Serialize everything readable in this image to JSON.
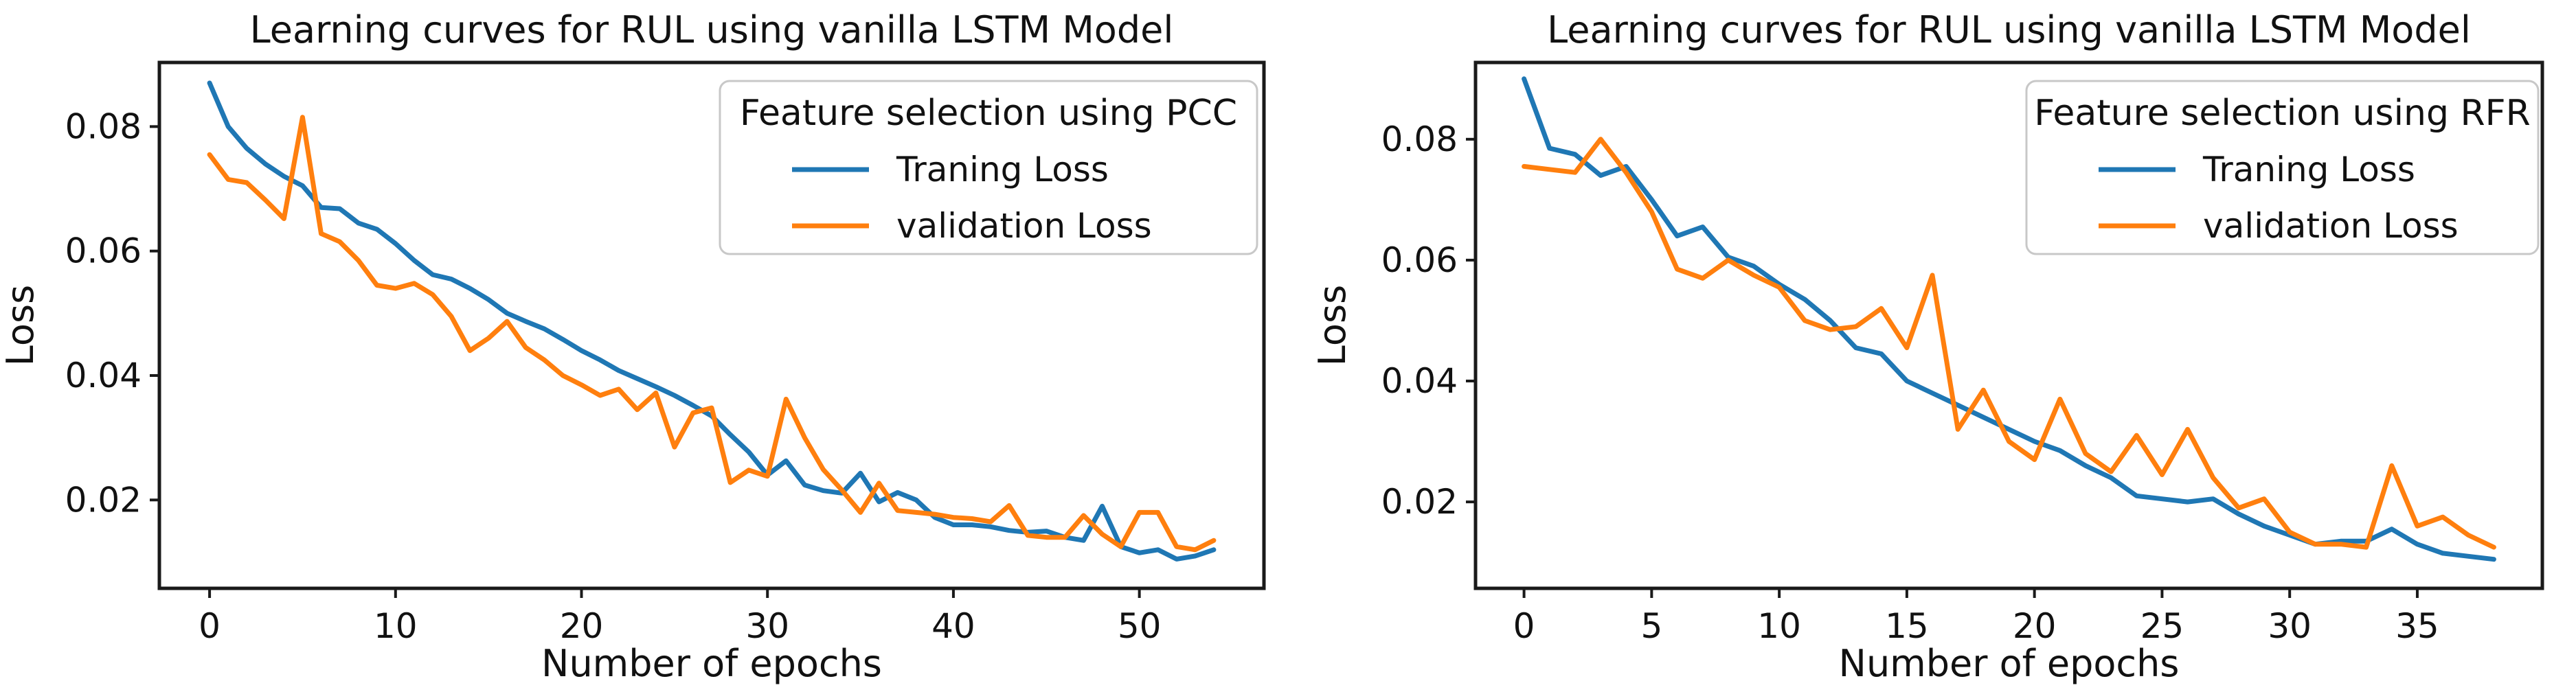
{
  "figure": {
    "background": "#ffffff",
    "text_color": "#111111",
    "spine_color": "#1a1a1a",
    "legend_border_color": "#c8c8c8"
  },
  "chart_data": [
    {
      "type": "line",
      "title": "Learning curves for RUL using vanilla LSTM Model",
      "xlabel": "Number of epochs",
      "ylabel": "Loss",
      "legend_title": "Feature selection using PCC",
      "legend_position": "upper right",
      "grid": false,
      "x_start": 0,
      "x_step": 1,
      "xlim": [
        -2.7,
        56.7
      ],
      "ylim": [
        0.0058,
        0.0903
      ],
      "xticks": [
        0,
        10,
        20,
        30,
        40,
        50
      ],
      "yticks": [
        0.02,
        0.04,
        0.06,
        0.08
      ],
      "ytick_labels": [
        "0.02",
        "0.04",
        "0.06",
        "0.08"
      ],
      "series": [
        {
          "name": "Traning Loss",
          "color": "#1f77b4",
          "values": [
            0.087,
            0.08,
            0.0765,
            0.074,
            0.072,
            0.0705,
            0.067,
            0.0668,
            0.0645,
            0.0635,
            0.0612,
            0.0585,
            0.0562,
            0.0555,
            0.054,
            0.0522,
            0.05,
            0.0487,
            0.0475,
            0.0458,
            0.044,
            0.0425,
            0.0408,
            0.0395,
            0.0382,
            0.0368,
            0.0352,
            0.0335,
            0.0305,
            0.0277,
            0.024,
            0.0263,
            0.0224,
            0.0215,
            0.0211,
            0.0243,
            0.0197,
            0.0212,
            0.02,
            0.0172,
            0.016,
            0.016,
            0.0157,
            0.0151,
            0.0148,
            0.015,
            0.014,
            0.0135,
            0.019,
            0.0125,
            0.0115,
            0.012,
            0.0105,
            0.011,
            0.012
          ]
        },
        {
          "name": "validation Loss",
          "color": "#ff7f0e",
          "values": [
            0.0755,
            0.0715,
            0.071,
            0.0682,
            0.0652,
            0.0815,
            0.0628,
            0.0615,
            0.0585,
            0.0545,
            0.054,
            0.0548,
            0.053,
            0.0495,
            0.044,
            0.046,
            0.0487,
            0.0445,
            0.0425,
            0.04,
            0.0385,
            0.0368,
            0.0378,
            0.0345,
            0.0372,
            0.0285,
            0.034,
            0.0348,
            0.0228,
            0.0248,
            0.0238,
            0.0362,
            0.03,
            0.0249,
            0.0216,
            0.018,
            0.0227,
            0.0183,
            0.018,
            0.0177,
            0.0172,
            0.017,
            0.0165,
            0.0191,
            0.0143,
            0.014,
            0.014,
            0.0175,
            0.0145,
            0.0125,
            0.018,
            0.018,
            0.0125,
            0.012,
            0.0135
          ]
        }
      ]
    },
    {
      "type": "line",
      "title": "Learning curves for RUL using vanilla LSTM Model",
      "xlabel": "Number of epochs",
      "ylabel": "Loss",
      "legend_title": "Feature selection using RFR",
      "legend_position": "upper right",
      "grid": false,
      "x_start": 0,
      "x_step": 1,
      "xlim": [
        -1.9,
        39.9
      ],
      "ylim": [
        0.0057,
        0.0927
      ],
      "xticks": [
        0,
        5,
        10,
        15,
        20,
        25,
        30,
        35
      ],
      "yticks": [
        0.02,
        0.04,
        0.06,
        0.08
      ],
      "ytick_labels": [
        "0.02",
        "0.04",
        "0.06",
        "0.08"
      ],
      "series": [
        {
          "name": "Traning Loss",
          "color": "#1f77b4",
          "values": [
            0.09,
            0.0785,
            0.0775,
            0.074,
            0.0755,
            0.07,
            0.064,
            0.0655,
            0.0605,
            0.059,
            0.056,
            0.0535,
            0.05,
            0.0455,
            0.0445,
            0.04,
            0.038,
            0.036,
            0.034,
            0.032,
            0.03,
            0.0285,
            0.026,
            0.024,
            0.021,
            0.0205,
            0.02,
            0.0205,
            0.018,
            0.016,
            0.0145,
            0.013,
            0.0135,
            0.0135,
            0.0155,
            0.013,
            0.0115,
            0.011,
            0.0105
          ]
        },
        {
          "name": "validation Loss",
          "color": "#ff7f0e",
          "values": [
            0.0755,
            0.075,
            0.0745,
            0.08,
            0.0745,
            0.068,
            0.0585,
            0.057,
            0.06,
            0.0575,
            0.0555,
            0.05,
            0.0485,
            0.049,
            0.052,
            0.0455,
            0.0575,
            0.032,
            0.0385,
            0.03,
            0.027,
            0.037,
            0.028,
            0.025,
            0.031,
            0.0245,
            0.032,
            0.024,
            0.019,
            0.0205,
            0.015,
            0.013,
            0.013,
            0.0125,
            0.026,
            0.016,
            0.0175,
            0.0145,
            0.0125
          ]
        }
      ]
    }
  ]
}
